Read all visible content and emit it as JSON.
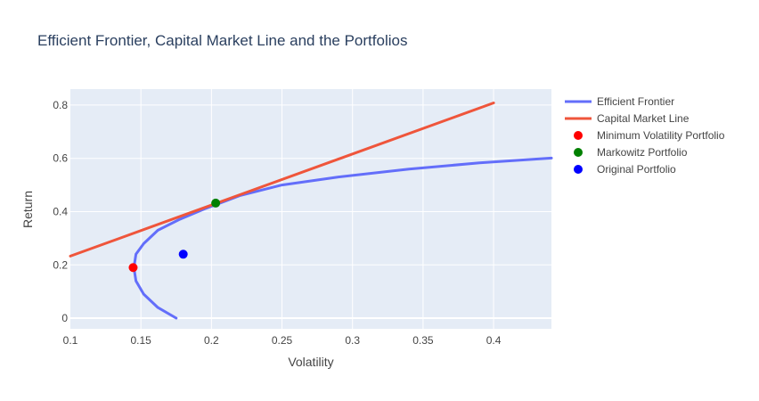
{
  "chart_data": {
    "type": "line",
    "title": "Efficient Frontier, Capital Market Line and the Portfolios",
    "xlabel": "Volatility",
    "ylabel": "Return",
    "xlim": [
      0.1,
      0.441
    ],
    "ylim": [
      -0.04,
      0.86
    ],
    "xticks": [
      0.1,
      0.15,
      0.2,
      0.25,
      0.3,
      0.35,
      0.4
    ],
    "xtick_labels": [
      "0.1",
      "0.15",
      "0.2",
      "0.25",
      "0.3",
      "0.35",
      "0.4"
    ],
    "yticks": [
      0,
      0.2,
      0.4,
      0.6,
      0.8
    ],
    "ytick_labels": [
      "0",
      "0.2",
      "0.4",
      "0.6",
      "0.8"
    ],
    "grid": true,
    "legend_position": "top-right",
    "series": [
      {
        "name": "Efficient Frontier",
        "mode": "line",
        "color": "#636efa",
        "x": [
          0.175,
          0.162,
          0.152,
          0.1465,
          0.145,
          0.1465,
          0.152,
          0.162,
          0.177,
          0.195,
          0.22,
          0.25,
          0.29,
          0.34,
          0.39,
          0.441
        ],
        "y": [
          0.0,
          0.04,
          0.09,
          0.14,
          0.19,
          0.24,
          0.28,
          0.33,
          0.37,
          0.41,
          0.46,
          0.5,
          0.53,
          0.56,
          0.583,
          0.601
        ]
      },
      {
        "name": "Capital Market Line",
        "mode": "line",
        "color": "#ef553b",
        "x": [
          0.1,
          0.4
        ],
        "y": [
          0.233,
          0.808
        ]
      },
      {
        "name": "Minimum Volatility Portfolio",
        "mode": "markers",
        "color": "#ff0000",
        "x": [
          0.1445
        ],
        "y": [
          0.19
        ]
      },
      {
        "name": "Markowitz Portfolio",
        "mode": "markers",
        "color": "#008000",
        "x": [
          0.203
        ],
        "y": [
          0.432
        ]
      },
      {
        "name": "Original Portfolio",
        "mode": "markers",
        "color": "#0000ff",
        "x": [
          0.18
        ],
        "y": [
          0.24
        ]
      }
    ],
    "colors": {
      "plot_background": "#e5ecf6",
      "grid": "#ffffff",
      "text": "#444444",
      "title": "#2a3f5f"
    }
  }
}
